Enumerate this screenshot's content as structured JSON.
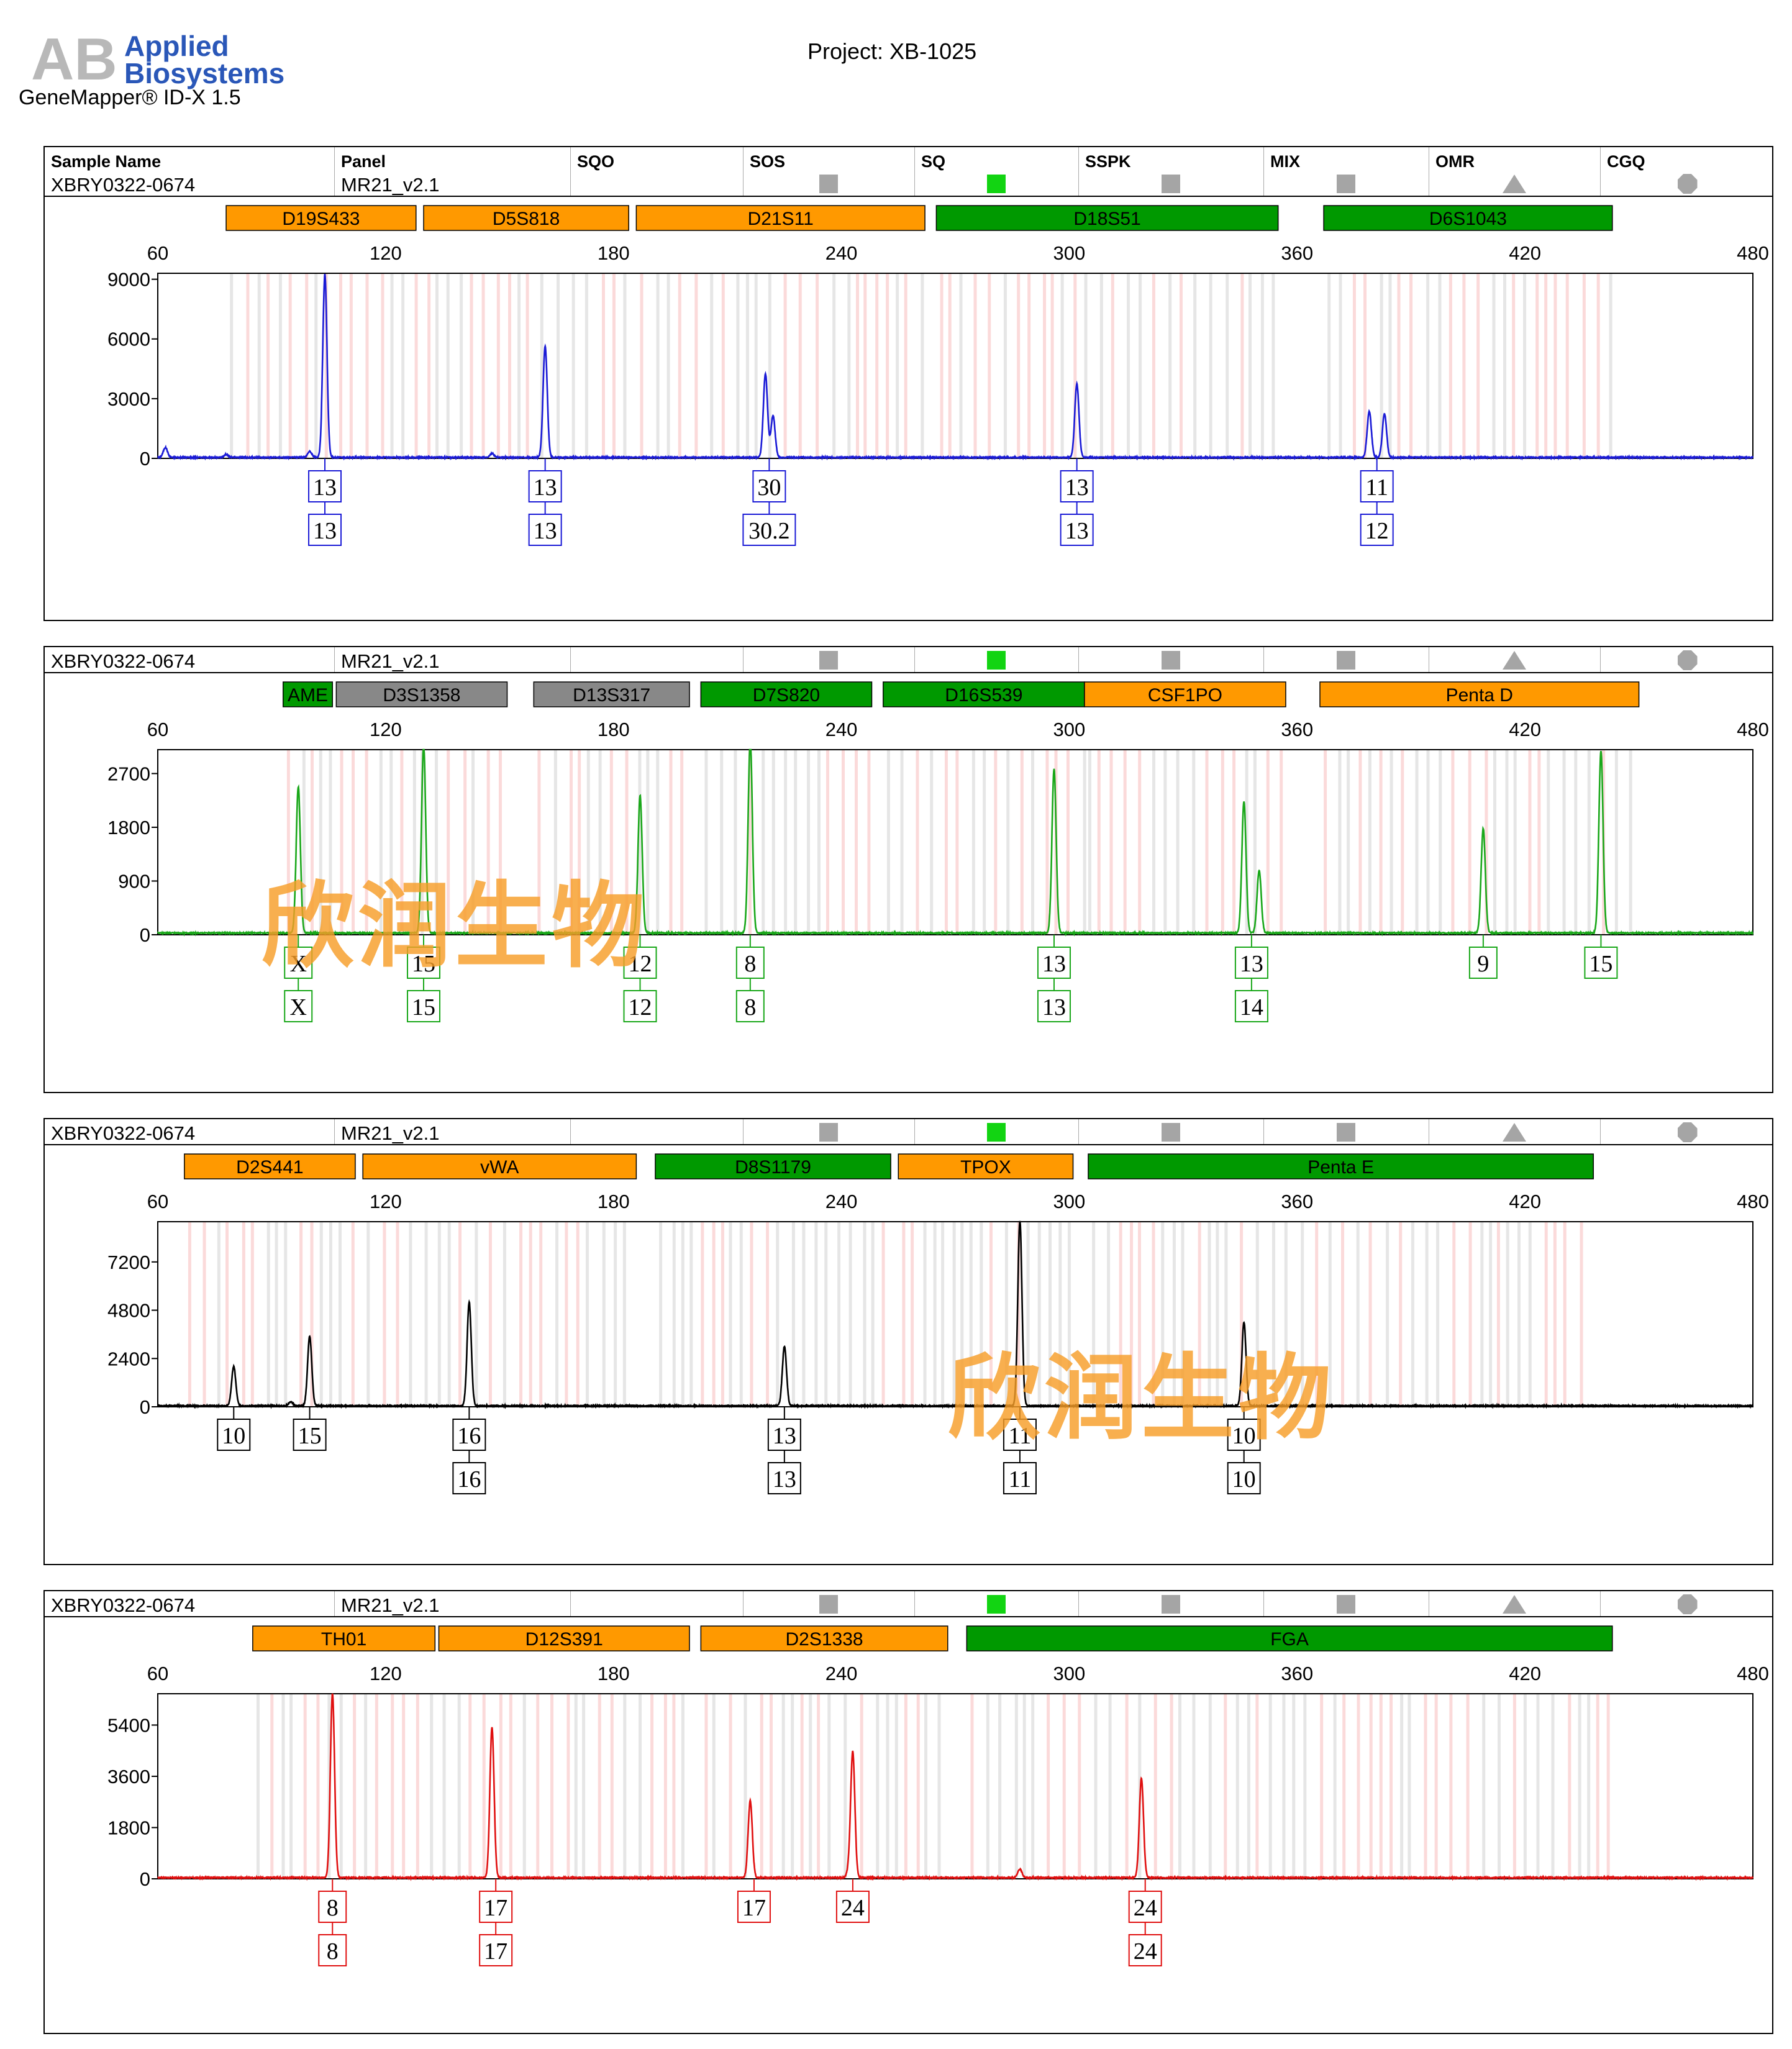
{
  "logo": {
    "brand_line1": "Applied",
    "brand_line2": "Biosystems",
    "mark": "AB"
  },
  "product": "GeneMapper® ID-X  1.5",
  "project": "Project: XB-1025",
  "header": {
    "columns": [
      "Sample Name",
      "Panel",
      "SQO",
      "SOS",
      "SQ",
      "SSPK",
      "MIX",
      "OMR",
      "CGQ"
    ]
  },
  "panels": [
    {
      "sample": "XBRY0322-0674",
      "panel": "MR21_v2.1",
      "dye_color": "#1a1ad6",
      "qc": [
        "gray-square",
        "green-square",
        "gray-square",
        "gray-square",
        "gray-triangle",
        "gray-octagon"
      ],
      "markers": [
        {
          "name": "D19S433",
          "start": 78,
          "end": 128,
          "color": "#ff9900"
        },
        {
          "name": "D5S818",
          "start": 130,
          "end": 184,
          "color": "#ff9900"
        },
        {
          "name": "D21S11",
          "start": 186,
          "end": 262,
          "color": "#ff9900"
        },
        {
          "name": "D18S51",
          "start": 265,
          "end": 355,
          "color": "#009900"
        },
        {
          "name": "D6S1043",
          "start": 367,
          "end": 443,
          "color": "#009900"
        }
      ],
      "chart_data": {
        "type": "line",
        "xlim": [
          60,
          480
        ],
        "x_ticks": [
          "60",
          "120",
          "180",
          "240",
          "300",
          "360",
          "420",
          "480"
        ],
        "ylim": [
          0,
          9300
        ],
        "y_ticks": [
          "0",
          "3000",
          "6000",
          "9000"
        ],
        "peaks": [
          {
            "x": 62,
            "y": 500
          },
          {
            "x": 78,
            "y": 150
          },
          {
            "x": 100,
            "y": 300
          },
          {
            "x": 104,
            "y": 9200
          },
          {
            "x": 148,
            "y": 200
          },
          {
            "x": 162,
            "y": 5600
          },
          {
            "x": 220,
            "y": 4200
          },
          {
            "x": 222,
            "y": 2100
          },
          {
            "x": 302,
            "y": 3700
          },
          {
            "x": 379,
            "y": 2300
          },
          {
            "x": 383,
            "y": 2200
          }
        ],
        "alleles": [
          {
            "x": 104,
            "labels": [
              "13",
              "13"
            ]
          },
          {
            "x": 162,
            "labels": [
              "13",
              "13"
            ]
          },
          {
            "x": 221,
            "labels": [
              "30",
              "30.2"
            ]
          },
          {
            "x": 302,
            "labels": [
              "13",
              "13"
            ]
          },
          {
            "x": 381,
            "labels": [
              "11",
              "12"
            ]
          }
        ]
      }
    },
    {
      "sample": "XBRY0322-0674",
      "panel": "MR21_v2.1",
      "dye_color": "#19a719",
      "qc": [
        "gray-square",
        "green-square",
        "gray-square",
        "gray-square",
        "gray-triangle",
        "gray-octagon"
      ],
      "markers": [
        {
          "name": "AME",
          "start": 93,
          "end": 106,
          "color": "#009900"
        },
        {
          "name": "D3S1358",
          "start": 107,
          "end": 152,
          "color": "#888888"
        },
        {
          "name": "D13S317",
          "start": 159,
          "end": 200,
          "color": "#888888"
        },
        {
          "name": "D7S820",
          "start": 203,
          "end": 248,
          "color": "#009900"
        },
        {
          "name": "D16S539",
          "start": 251,
          "end": 304,
          "color": "#009900"
        },
        {
          "name": "CSF1PO",
          "start": 304,
          "end": 357,
          "color": "#ff9900"
        },
        {
          "name": "Penta D",
          "start": 366,
          "end": 450,
          "color": "#ff9900"
        }
      ],
      "chart_data": {
        "type": "line",
        "xlim": [
          60,
          480
        ],
        "x_ticks": [
          "60",
          "120",
          "180",
          "240",
          "300",
          "360",
          "420",
          "480"
        ],
        "ylim": [
          0,
          3100
        ],
        "y_ticks": [
          "0",
          "900",
          "1800",
          "2700"
        ],
        "peaks": [
          {
            "x": 97,
            "y": 2450
          },
          {
            "x": 130,
            "y": 3150
          },
          {
            "x": 187,
            "y": 2300
          },
          {
            "x": 216,
            "y": 3250
          },
          {
            "x": 296,
            "y": 2750
          },
          {
            "x": 346,
            "y": 2200
          },
          {
            "x": 350,
            "y": 1050
          },
          {
            "x": 409,
            "y": 1750
          },
          {
            "x": 440,
            "y": 3050
          }
        ],
        "alleles": [
          {
            "x": 97,
            "labels": [
              "X",
              "X"
            ]
          },
          {
            "x": 130,
            "labels": [
              "15",
              "15"
            ]
          },
          {
            "x": 187,
            "labels": [
              "12",
              "12"
            ]
          },
          {
            "x": 216,
            "labels": [
              "8",
              "8"
            ]
          },
          {
            "x": 296,
            "labels": [
              "13",
              "13"
            ]
          },
          {
            "x": 348,
            "labels": [
              "13",
              "14"
            ]
          },
          {
            "x": 409,
            "labels": [
              "9"
            ]
          },
          {
            "x": 440,
            "labels": [
              "15"
            ]
          }
        ]
      }
    },
    {
      "sample": "XBRY0322-0674",
      "panel": "MR21_v2.1",
      "dye_color": "#000000",
      "qc": [
        "gray-square",
        "green-square",
        "gray-square",
        "gray-square",
        "gray-triangle",
        "gray-octagon"
      ],
      "markers": [
        {
          "name": "D2S441",
          "start": 67,
          "end": 112,
          "color": "#ff9900"
        },
        {
          "name": "vWA",
          "start": 114,
          "end": 186,
          "color": "#ff9900"
        },
        {
          "name": "D8S1179",
          "start": 191,
          "end": 253,
          "color": "#009900"
        },
        {
          "name": "TPOX",
          "start": 255,
          "end": 301,
          "color": "#ff9900"
        },
        {
          "name": "Penta E",
          "start": 305,
          "end": 438,
          "color": "#009900"
        }
      ],
      "chart_data": {
        "type": "line",
        "xlim": [
          60,
          480
        ],
        "x_ticks": [
          "60",
          "120",
          "180",
          "240",
          "300",
          "360",
          "420",
          "480"
        ],
        "ylim": [
          0,
          9200
        ],
        "y_ticks": [
          "0",
          "2400",
          "4800",
          "7200"
        ],
        "peaks": [
          {
            "x": 80,
            "y": 1950
          },
          {
            "x": 95,
            "y": 200
          },
          {
            "x": 100,
            "y": 3450
          },
          {
            "x": 142,
            "y": 5150
          },
          {
            "x": 225,
            "y": 2950
          },
          {
            "x": 287,
            "y": 9200
          },
          {
            "x": 346,
            "y": 4150
          }
        ],
        "alleles": [
          {
            "x": 80,
            "labels": [
              "10"
            ]
          },
          {
            "x": 100,
            "labels": [
              "15"
            ]
          },
          {
            "x": 142,
            "labels": [
              "16",
              "16"
            ]
          },
          {
            "x": 225,
            "labels": [
              "13",
              "13"
            ]
          },
          {
            "x": 287,
            "labels": [
              "11",
              "11"
            ]
          },
          {
            "x": 346,
            "labels": [
              "10",
              "10"
            ]
          }
        ]
      }
    },
    {
      "sample": "XBRY0322-0674",
      "panel": "MR21_v2.1",
      "dye_color": "#e01010",
      "qc": [
        "gray-square",
        "green-square",
        "gray-square",
        "gray-square",
        "gray-triangle",
        "gray-octagon"
      ],
      "markers": [
        {
          "name": "TH01",
          "start": 85,
          "end": 133,
          "color": "#ff9900"
        },
        {
          "name": "D12S391",
          "start": 134,
          "end": 200,
          "color": "#ff9900"
        },
        {
          "name": "D2S1338",
          "start": 203,
          "end": 268,
          "color": "#ff9900"
        },
        {
          "name": "FGA",
          "start": 273,
          "end": 443,
          "color": "#009900"
        }
      ],
      "chart_data": {
        "type": "line",
        "xlim": [
          60,
          480
        ],
        "x_ticks": [
          "60",
          "120",
          "180",
          "240",
          "300",
          "360",
          "420",
          "480"
        ],
        "ylim": [
          0,
          6500
        ],
        "y_ticks": [
          "0",
          "1800",
          "3600",
          "5400"
        ],
        "peaks": [
          {
            "x": 106,
            "y": 6500
          },
          {
            "x": 148,
            "y": 5300
          },
          {
            "x": 216,
            "y": 2700
          },
          {
            "x": 242,
            "y": 250
          },
          {
            "x": 243,
            "y": 4400
          },
          {
            "x": 287,
            "y": 300
          },
          {
            "x": 319,
            "y": 3500
          }
        ],
        "alleles": [
          {
            "x": 106,
            "labels": [
              "8",
              "8"
            ]
          },
          {
            "x": 149,
            "labels": [
              "17",
              "17"
            ]
          },
          {
            "x": 217,
            "labels": [
              "17"
            ]
          },
          {
            "x": 243,
            "labels": [
              "24"
            ]
          },
          {
            "x": 320,
            "labels": [
              "24",
              "24"
            ]
          }
        ]
      }
    }
  ],
  "watermarks": [
    "欣润生物",
    "欣润生物"
  ]
}
